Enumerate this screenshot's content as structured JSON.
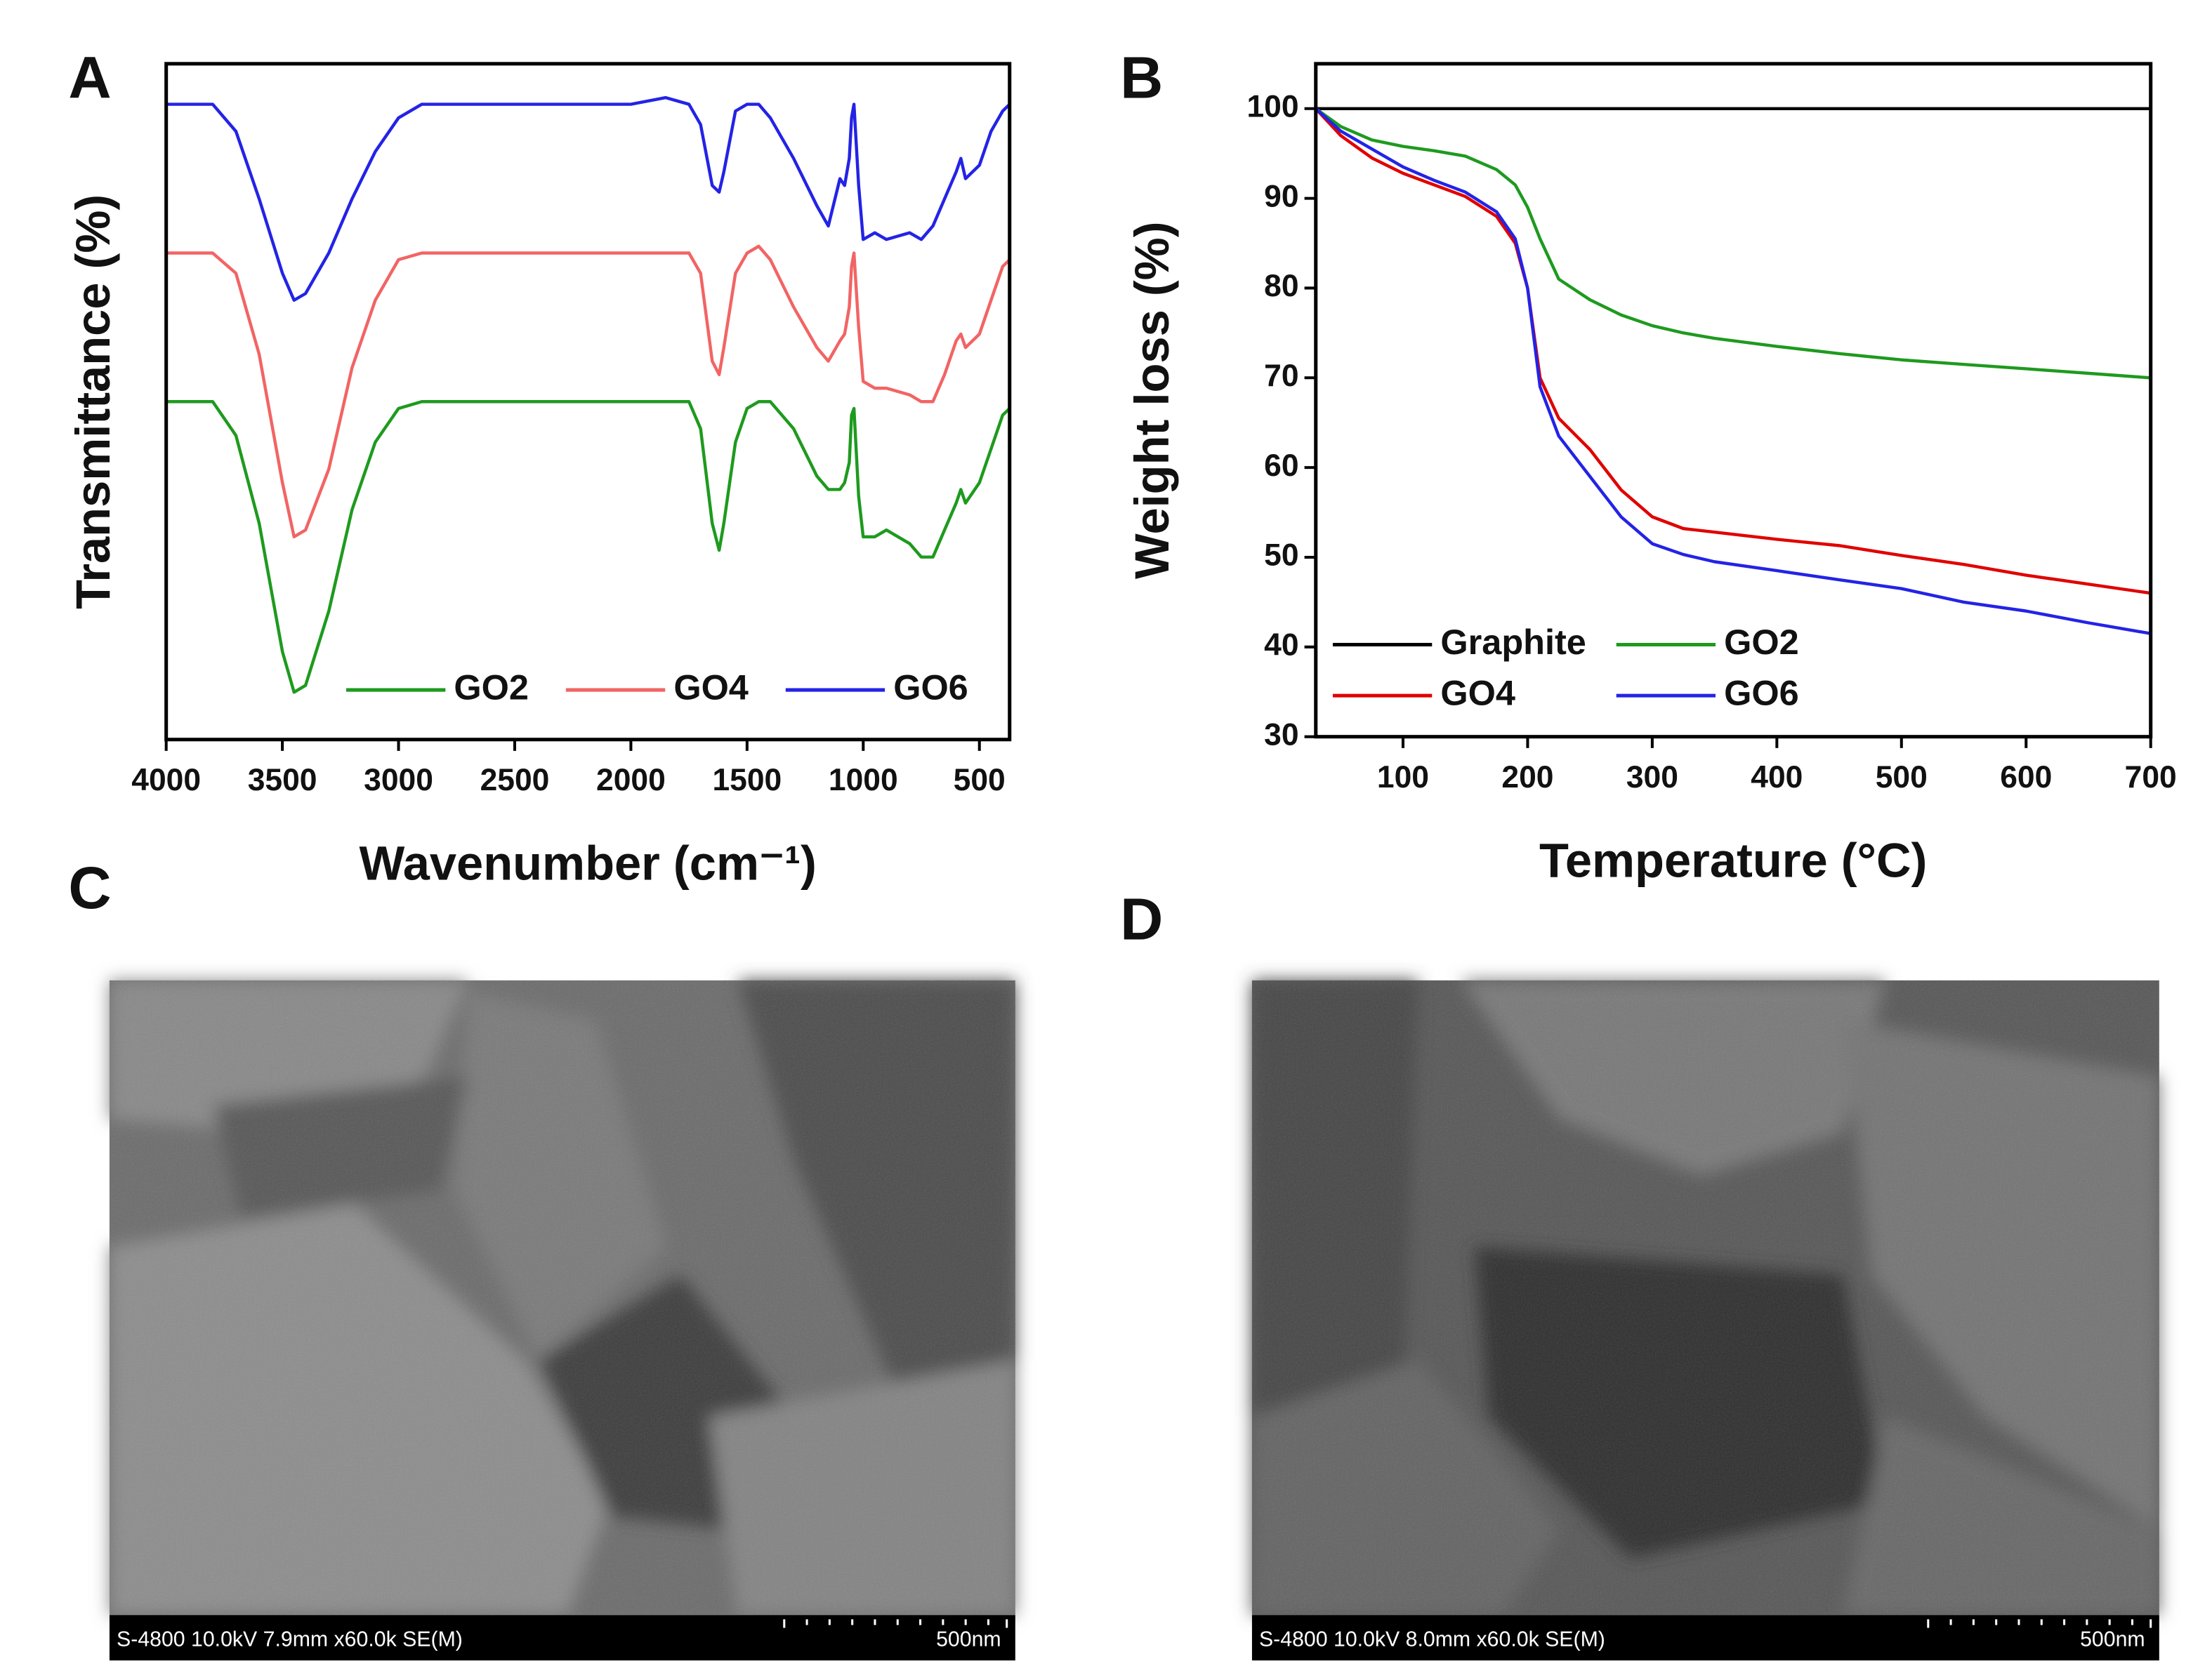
{
  "chart_data": [
    {
      "type": "line",
      "panel_label": "A",
      "x_label": "Wavenumber (cm⁻¹)",
      "y_label": "Transmittance (%)",
      "xlim": [
        4000,
        370
      ],
      "xticks": [
        4000,
        3500,
        3000,
        2500,
        2000,
        1500,
        1000,
        500
      ],
      "ylim": [
        0,
        100
      ],
      "legend": "lower right",
      "x": [
        4000,
        3800,
        3700,
        3600,
        3500,
        3450,
        3400,
        3300,
        3200,
        3100,
        3000,
        2900,
        2500,
        2000,
        1850,
        1750,
        1700,
        1650,
        1620,
        1600,
        1550,
        1500,
        1450,
        1400,
        1300,
        1200,
        1150,
        1100,
        1080,
        1060,
        1050,
        1040,
        1020,
        1000,
        950,
        900,
        800,
        750,
        700,
        650,
        600,
        580,
        560,
        500,
        450,
        400,
        370
      ],
      "series": [
        {
          "name": "GO2",
          "color": "#1e9a1e",
          "values": [
            50,
            50,
            45,
            32,
            13,
            7,
            8,
            19,
            34,
            44,
            49,
            50,
            50,
            50,
            50,
            50,
            46,
            32,
            28,
            32,
            44,
            49,
            50,
            50,
            46,
            39,
            37,
            37,
            38,
            41,
            48,
            49,
            36,
            30,
            30,
            31,
            29,
            27,
            27,
            31,
            35,
            37,
            35,
            38,
            43,
            48,
            49
          ]
        },
        {
          "name": "GO4",
          "color": "#f26464",
          "values": [
            72,
            72,
            69,
            57,
            38,
            30,
            31,
            40,
            55,
            65,
            71,
            72,
            72,
            72,
            72,
            72,
            69,
            56,
            54,
            58,
            69,
            72,
            73,
            71,
            64,
            58,
            56,
            59,
            60,
            64,
            70,
            72,
            61,
            53,
            52,
            52,
            51,
            50,
            50,
            54,
            59,
            60,
            58,
            60,
            65,
            70,
            71
          ]
        },
        {
          "name": "GO6",
          "color": "#2323e6",
          "values": [
            94,
            94,
            90,
            80,
            69,
            65,
            66,
            72,
            80,
            87,
            92,
            94,
            94,
            94,
            95,
            94,
            91,
            82,
            81,
            84,
            93,
            94,
            94,
            92,
            86,
            79,
            76,
            83,
            82,
            86,
            92,
            94,
            82,
            74,
            75,
            74,
            75,
            74,
            76,
            80,
            84,
            86,
            83,
            85,
            90,
            93,
            94
          ]
        }
      ]
    },
    {
      "type": "line",
      "panel_label": "B",
      "x_label": "Temperature (°C)",
      "y_label": "Weight loss (%)",
      "xlim": [
        30,
        700
      ],
      "xticks": [
        100,
        200,
        300,
        400,
        500,
        600,
        700
      ],
      "ylim": [
        30,
        105
      ],
      "yticks": [
        30,
        40,
        50,
        60,
        70,
        80,
        90,
        100
      ],
      "legend": "lower left",
      "x": [
        30,
        50,
        75,
        100,
        125,
        150,
        175,
        190,
        200,
        210,
        225,
        250,
        275,
        300,
        325,
        350,
        400,
        450,
        500,
        550,
        600,
        650,
        700
      ],
      "series": [
        {
          "name": "Graphite",
          "color": "#000000",
          "values": [
            100,
            100,
            100,
            100,
            100,
            100,
            100,
            100,
            100,
            100,
            100,
            100,
            100,
            100,
            100,
            100,
            100,
            100,
            100,
            100,
            100,
            100,
            100
          ]
        },
        {
          "name": "GO2",
          "color": "#1e9a1e",
          "values": [
            100,
            98,
            96.5,
            95.8,
            95.3,
            94.7,
            93.2,
            91.5,
            89,
            85.5,
            81,
            78.7,
            77,
            75.8,
            75,
            74.4,
            73.5,
            72.7,
            72,
            71.5,
            71,
            70.5,
            70
          ]
        },
        {
          "name": "GO4",
          "color": "#e00000",
          "values": [
            100,
            97,
            94.5,
            92.8,
            91.5,
            90.2,
            88,
            85,
            80,
            70,
            65.5,
            62,
            57.5,
            54.5,
            53.2,
            52.8,
            52,
            51.3,
            50.2,
            49.2,
            48,
            47,
            46
          ]
        },
        {
          "name": "GO6",
          "color": "#2323e6",
          "values": [
            100,
            97.5,
            95.5,
            93.5,
            92,
            90.7,
            88.5,
            85.5,
            80,
            69,
            63.5,
            59,
            54.5,
            51.5,
            50.3,
            49.5,
            48.5,
            47.5,
            46.5,
            45,
            44,
            42.7,
            41.5
          ]
        }
      ]
    }
  ],
  "images": [
    {
      "label": "C",
      "info": "S-4800 10.0kV 7.9mm x60.0k SE(M)",
      "scale": "500nm"
    },
    {
      "label": "D",
      "info": "S-4800 10.0kV 8.0mm x60.0k SE(M)",
      "scale": "500nm"
    }
  ]
}
